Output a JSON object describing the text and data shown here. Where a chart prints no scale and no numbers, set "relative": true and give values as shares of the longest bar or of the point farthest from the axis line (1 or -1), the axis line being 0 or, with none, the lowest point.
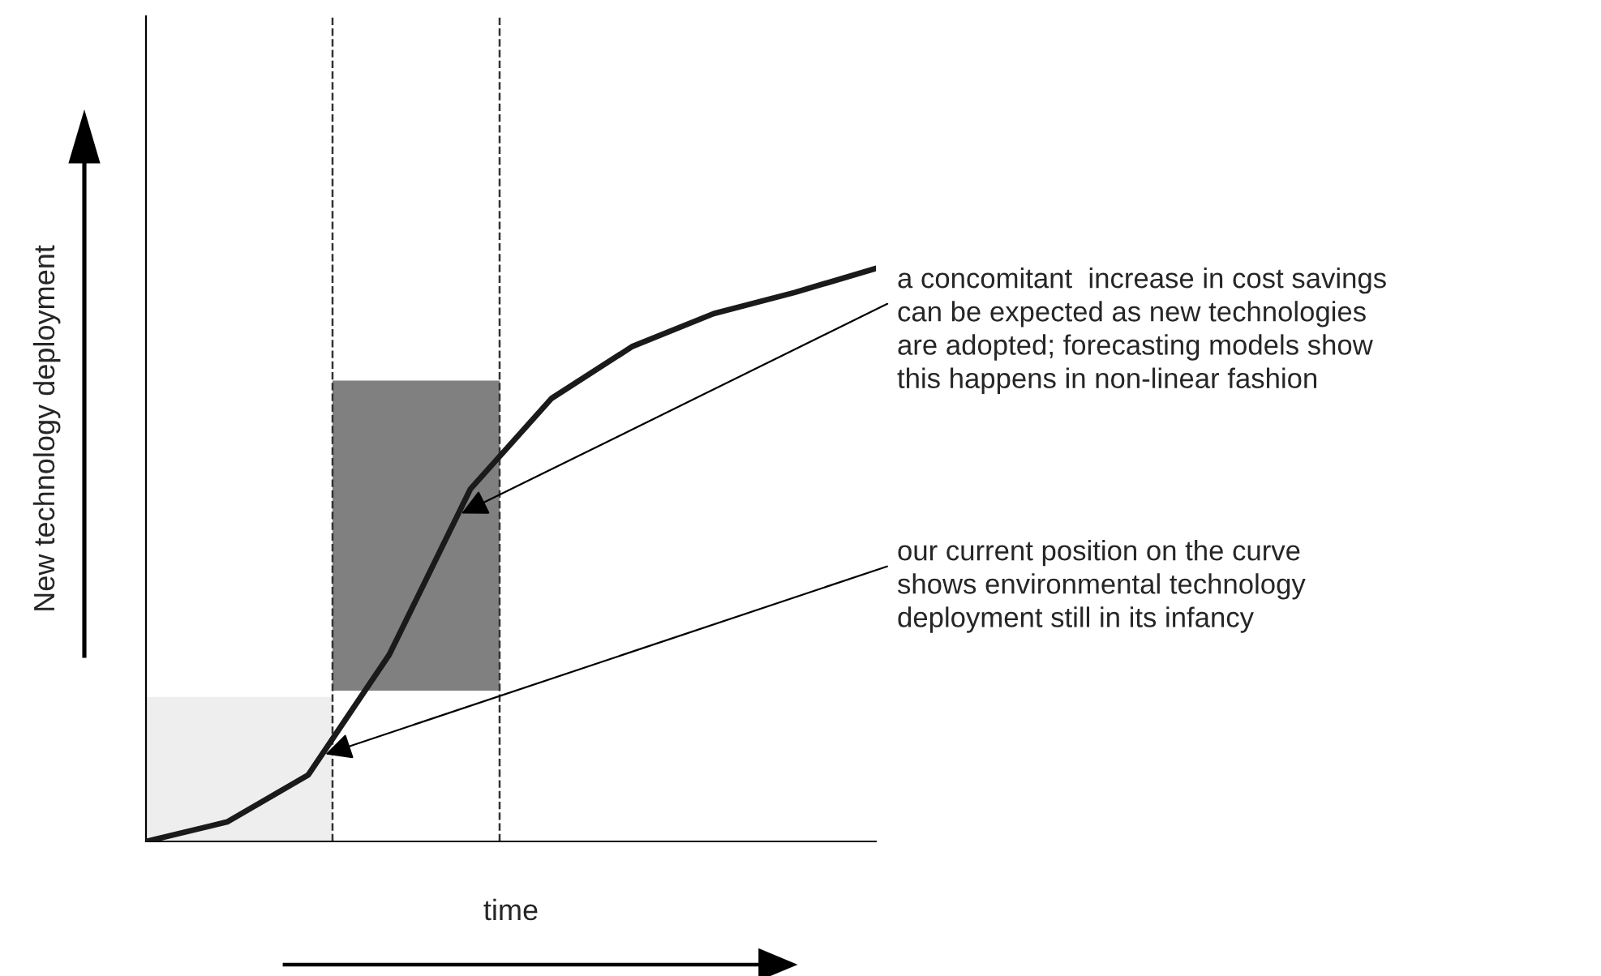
{
  "chart_data": {
    "type": "line",
    "relative": true,
    "xlabel": "time",
    "ylabel": "New technology deployment",
    "categories": [
      null,
      null,
      null,
      null,
      null,
      null,
      null,
      null,
      null,
      null
    ],
    "series": [
      {
        "color": "#1a1a1a",
        "values": [
          0,
          0.034,
          0.116,
          0.326,
          0.615,
          0.773,
          0.864,
          0.921,
          0.958,
          1
        ]
      }
    ],
    "annotations": [
      "a concomitant  increase in cost savings\ncan be expected as new technologies\nare adopted; forecasting models show\nthis happens in non-linear fashion",
      "our current position on the curve\nshows environmental technology\ndeployment still in its infancy"
    ],
    "marker": "none",
    "line_style": "solid"
  }
}
